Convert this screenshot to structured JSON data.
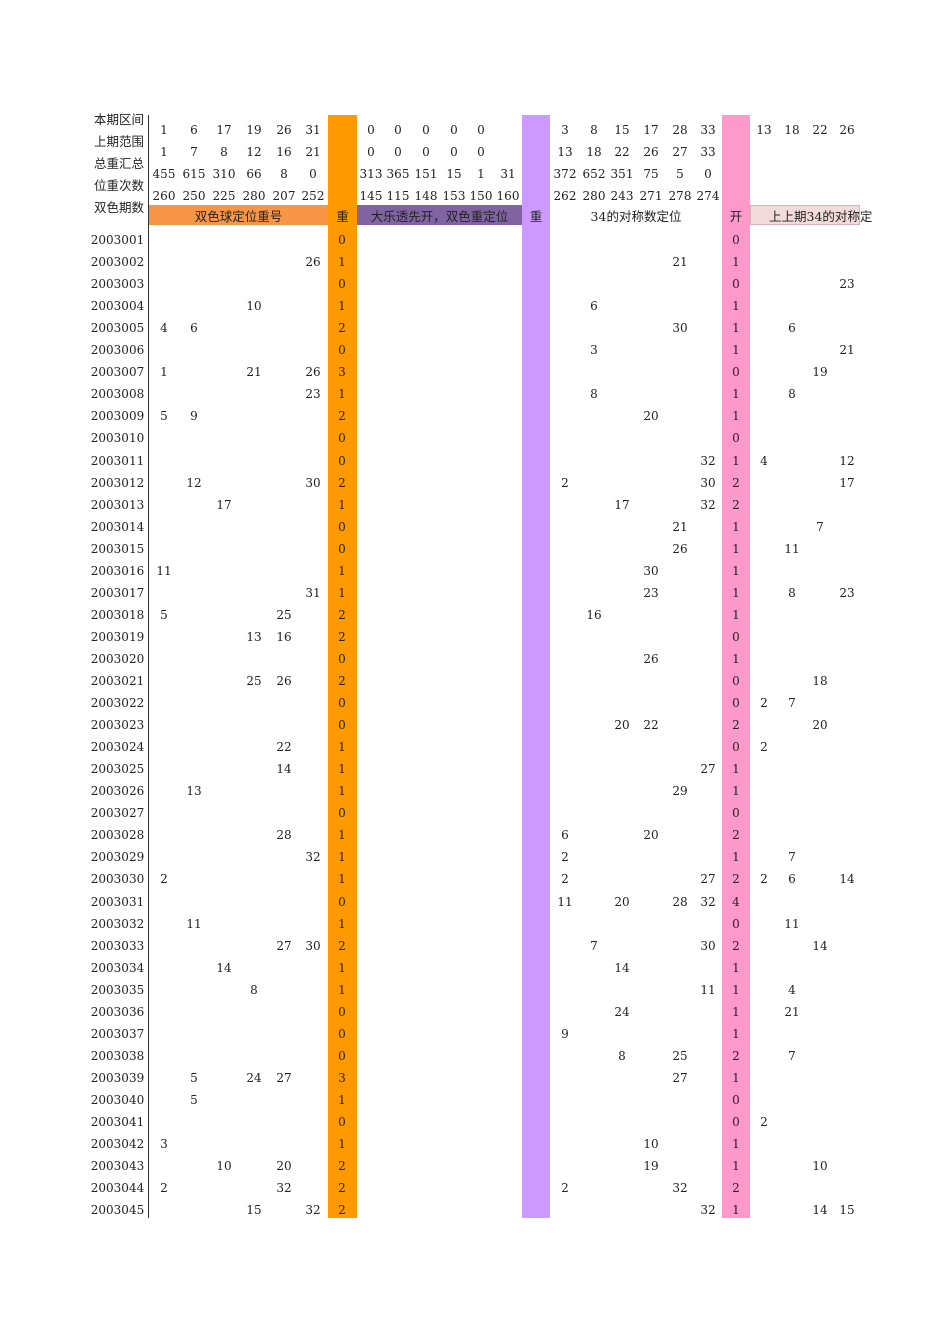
{
  "row_labels": {
    "range_current": "本期区间",
    "range_previous": "上期范围",
    "total_summary": "总重汇总",
    "position_count": "位重次数",
    "ssq_period": "双色期数"
  },
  "headers": {
    "ssq_position": "双色球定位重号",
    "repeat_a": "重",
    "dlt_first": "大乐透先开，双色重定位",
    "repeat_b": "重",
    "symmetric34": "34的对称数定位",
    "open": "开",
    "prev_prev_symmetric": "上上期34的对称定"
  },
  "colors": {
    "orange_band": "#ff9900",
    "purple_band": "#cc99ff",
    "pink_band": "#ff99cc",
    "header_orange": "#f79646",
    "header_dark_purple": "#8064a2",
    "header_pink": "#ff99cc",
    "header_light_pink": "#f2dcdb"
  },
  "top_rows": [
    [
      "1",
      "6",
      "17",
      "19",
      "26",
      "31",
      "",
      "0",
      "0",
      "0",
      "0",
      "0",
      "",
      "",
      "3",
      "8",
      "15",
      "17",
      "28",
      "33",
      "",
      "13",
      "18",
      "22",
      "26"
    ],
    [
      "1",
      "7",
      "8",
      "12",
      "16",
      "21",
      "",
      "0",
      "0",
      "0",
      "0",
      "0",
      "",
      "",
      "13",
      "18",
      "22",
      "26",
      "27",
      "33",
      "",
      "",
      "",
      "",
      ""
    ],
    [
      "455",
      "615",
      "310",
      "66",
      "8",
      "0",
      "",
      "313",
      "365",
      "151",
      "15",
      "1",
      "31",
      "",
      "372",
      "652",
      "351",
      "75",
      "5",
      "0",
      "",
      "",
      "",
      "",
      ""
    ],
    [
      "260",
      "250",
      "225",
      "280",
      "207",
      "252",
      "",
      "145",
      "115",
      "148",
      "153",
      "150",
      "160",
      "",
      "262",
      "280",
      "243",
      "271",
      "278",
      "274",
      "",
      "",
      "",
      "",
      ""
    ]
  ],
  "data_rows": [
    {
      "d": "2003001",
      "c": [
        "",
        "",
        "",
        "",
        "",
        "",
        "0",
        "",
        "",
        "",
        "",
        "",
        "",
        "",
        "",
        "",
        "",
        "",
        "",
        "",
        "0",
        "",
        "",
        "",
        ""
      ]
    },
    {
      "d": "2003002",
      "c": [
        "",
        "",
        "",
        "",
        "",
        "26",
        "1",
        "",
        "",
        "",
        "",
        "",
        "",
        "",
        "",
        "",
        "",
        "",
        "21",
        "",
        "1",
        "",
        "",
        "",
        ""
      ]
    },
    {
      "d": "2003003",
      "c": [
        "",
        "",
        "",
        "",
        "",
        "",
        "0",
        "",
        "",
        "",
        "",
        "",
        "",
        "",
        "",
        "",
        "",
        "",
        "",
        "",
        "0",
        "",
        "",
        "",
        "23"
      ]
    },
    {
      "d": "2003004",
      "c": [
        "",
        "",
        "",
        "10",
        "",
        "",
        "1",
        "",
        "",
        "",
        "",
        "",
        "",
        "",
        "",
        "6",
        "",
        "",
        "",
        "",
        "1",
        "",
        "",
        "",
        ""
      ]
    },
    {
      "d": "2003005",
      "c": [
        "4",
        "6",
        "",
        "",
        "",
        "",
        "2",
        "",
        "",
        "",
        "",
        "",
        "",
        "",
        "",
        "",
        "",
        "",
        "30",
        "",
        "1",
        "",
        "6",
        "",
        ""
      ]
    },
    {
      "d": "2003006",
      "c": [
        "",
        "",
        "",
        "",
        "",
        "",
        "0",
        "",
        "",
        "",
        "",
        "",
        "",
        "",
        "",
        "3",
        "",
        "",
        "",
        "",
        "1",
        "",
        "",
        "",
        "21"
      ]
    },
    {
      "d": "2003007",
      "c": [
        "1",
        "",
        "",
        "21",
        "",
        "26",
        "3",
        "",
        "",
        "",
        "",
        "",
        "",
        "",
        "",
        "",
        "",
        "",
        "",
        "",
        "0",
        "",
        "",
        "19",
        ""
      ]
    },
    {
      "d": "2003008",
      "c": [
        "",
        "",
        "",
        "",
        "",
        "23",
        "1",
        "",
        "",
        "",
        "",
        "",
        "",
        "",
        "",
        "8",
        "",
        "",
        "",
        "",
        "1",
        "",
        "8",
        "",
        ""
      ]
    },
    {
      "d": "2003009",
      "c": [
        "5",
        "9",
        "",
        "",
        "",
        "",
        "2",
        "",
        "",
        "",
        "",
        "",
        "",
        "",
        "",
        "",
        "",
        "20",
        "",
        "",
        "1",
        "",
        "",
        "",
        ""
      ]
    },
    {
      "d": "2003010",
      "c": [
        "",
        "",
        "",
        "",
        "",
        "",
        "0",
        "",
        "",
        "",
        "",
        "",
        "",
        "",
        "",
        "",
        "",
        "",
        "",
        "",
        "0",
        "",
        "",
        "",
        ""
      ]
    },
    {
      "d": "2003011",
      "c": [
        "",
        "",
        "",
        "",
        "",
        "",
        "0",
        "",
        "",
        "",
        "",
        "",
        "",
        "",
        "",
        "",
        "",
        "",
        "",
        "32",
        "1",
        "4",
        "",
        "",
        "12"
      ]
    },
    {
      "d": "2003012",
      "c": [
        "",
        "12",
        "",
        "",
        "",
        "30",
        "2",
        "",
        "",
        "",
        "",
        "",
        "",
        "",
        "2",
        "",
        "",
        "",
        "",
        "30",
        "2",
        "",
        "",
        "",
        "17"
      ]
    },
    {
      "d": "2003013",
      "c": [
        "",
        "",
        "17",
        "",
        "",
        "",
        "1",
        "",
        "",
        "",
        "",
        "",
        "",
        "",
        "",
        "",
        "17",
        "",
        "",
        "32",
        "2",
        "",
        "",
        "",
        ""
      ]
    },
    {
      "d": "2003014",
      "c": [
        "",
        "",
        "",
        "",
        "",
        "",
        "0",
        "",
        "",
        "",
        "",
        "",
        "",
        "",
        "",
        "",
        "",
        "",
        "21",
        "",
        "1",
        "",
        "",
        "7",
        ""
      ]
    },
    {
      "d": "2003015",
      "c": [
        "",
        "",
        "",
        "",
        "",
        "",
        "0",
        "",
        "",
        "",
        "",
        "",
        "",
        "",
        "",
        "",
        "",
        "",
        "26",
        "",
        "1",
        "",
        "11",
        "",
        ""
      ]
    },
    {
      "d": "2003016",
      "c": [
        "11",
        "",
        "",
        "",
        "",
        "",
        "1",
        "",
        "",
        "",
        "",
        "",
        "",
        "",
        "",
        "",
        "",
        "30",
        "",
        "",
        "1",
        "",
        "",
        "",
        ""
      ]
    },
    {
      "d": "2003017",
      "c": [
        "",
        "",
        "",
        "",
        "",
        "31",
        "1",
        "",
        "",
        "",
        "",
        "",
        "",
        "",
        "",
        "",
        "",
        "23",
        "",
        "",
        "1",
        "",
        "8",
        "",
        "23"
      ]
    },
    {
      "d": "2003018",
      "c": [
        "5",
        "",
        "",
        "",
        "25",
        "",
        "2",
        "",
        "",
        "",
        "",
        "",
        "",
        "",
        "",
        "16",
        "",
        "",
        "",
        "",
        "1",
        "",
        "",
        "",
        ""
      ]
    },
    {
      "d": "2003019",
      "c": [
        "",
        "",
        "",
        "13",
        "16",
        "",
        "2",
        "",
        "",
        "",
        "",
        "",
        "",
        "",
        "",
        "",
        "",
        "",
        "",
        "",
        "0",
        "",
        "",
        "",
        ""
      ]
    },
    {
      "d": "2003020",
      "c": [
        "",
        "",
        "",
        "",
        "",
        "",
        "0",
        "",
        "",
        "",
        "",
        "",
        "",
        "",
        "",
        "",
        "",
        "26",
        "",
        "",
        "1",
        "",
        "",
        "",
        ""
      ]
    },
    {
      "d": "2003021",
      "c": [
        "",
        "",
        "",
        "25",
        "26",
        "",
        "2",
        "",
        "",
        "",
        "",
        "",
        "",
        "",
        "",
        "",
        "",
        "",
        "",
        "",
        "0",
        "",
        "",
        "18",
        ""
      ]
    },
    {
      "d": "2003022",
      "c": [
        "",
        "",
        "",
        "",
        "",
        "",
        "0",
        "",
        "",
        "",
        "",
        "",
        "",
        "",
        "",
        "",
        "",
        "",
        "",
        "",
        "0",
        "2",
        "7",
        "",
        ""
      ]
    },
    {
      "d": "2003023",
      "c": [
        "",
        "",
        "",
        "",
        "",
        "",
        "0",
        "",
        "",
        "",
        "",
        "",
        "",
        "",
        "",
        "",
        "20",
        "22",
        "",
        "",
        "2",
        "",
        "",
        "20",
        ""
      ]
    },
    {
      "d": "2003024",
      "c": [
        "",
        "",
        "",
        "",
        "22",
        "",
        "1",
        "",
        "",
        "",
        "",
        "",
        "",
        "",
        "",
        "",
        "",
        "",
        "",
        "",
        "0",
        "2",
        "",
        "",
        ""
      ]
    },
    {
      "d": "2003025",
      "c": [
        "",
        "",
        "",
        "",
        "14",
        "",
        "1",
        "",
        "",
        "",
        "",
        "",
        "",
        "",
        "",
        "",
        "",
        "",
        "",
        "27",
        "1",
        "",
        "",
        "",
        ""
      ]
    },
    {
      "d": "2003026",
      "c": [
        "",
        "13",
        "",
        "",
        "",
        "",
        "1",
        "",
        "",
        "",
        "",
        "",
        "",
        "",
        "",
        "",
        "",
        "",
        "29",
        "",
        "1",
        "",
        "",
        "",
        ""
      ]
    },
    {
      "d": "2003027",
      "c": [
        "",
        "",
        "",
        "",
        "",
        "",
        "0",
        "",
        "",
        "",
        "",
        "",
        "",
        "",
        "",
        "",
        "",
        "",
        "",
        "",
        "0",
        "",
        "",
        "",
        ""
      ]
    },
    {
      "d": "2003028",
      "c": [
        "",
        "",
        "",
        "",
        "28",
        "",
        "1",
        "",
        "",
        "",
        "",
        "",
        "",
        "",
        "6",
        "",
        "",
        "20",
        "",
        "",
        "2",
        "",
        "",
        "",
        ""
      ]
    },
    {
      "d": "2003029",
      "c": [
        "",
        "",
        "",
        "",
        "",
        "32",
        "1",
        "",
        "",
        "",
        "",
        "",
        "",
        "",
        "2",
        "",
        "",
        "",
        "",
        "",
        "1",
        "",
        "7",
        "",
        ""
      ]
    },
    {
      "d": "2003030",
      "c": [
        "2",
        "",
        "",
        "",
        "",
        "",
        "1",
        "",
        "",
        "",
        "",
        "",
        "",
        "",
        "2",
        "",
        "",
        "",
        "",
        "27",
        "2",
        "2",
        "6",
        "",
        "14"
      ]
    },
    {
      "d": "2003031",
      "c": [
        "",
        "",
        "",
        "",
        "",
        "",
        "0",
        "",
        "",
        "",
        "",
        "",
        "",
        "",
        "11",
        "",
        "20",
        "",
        "28",
        "32",
        "4",
        "",
        "",
        "",
        ""
      ]
    },
    {
      "d": "2003032",
      "c": [
        "",
        "11",
        "",
        "",
        "",
        "",
        "1",
        "",
        "",
        "",
        "",
        "",
        "",
        "",
        "",
        "",
        "",
        "",
        "",
        "",
        "0",
        "",
        "11",
        "",
        ""
      ]
    },
    {
      "d": "2003033",
      "c": [
        "",
        "",
        "",
        "",
        "27",
        "30",
        "2",
        "",
        "",
        "",
        "",
        "",
        "",
        "",
        "",
        "7",
        "",
        "",
        "",
        "30",
        "2",
        "",
        "",
        "14",
        ""
      ]
    },
    {
      "d": "2003034",
      "c": [
        "",
        "",
        "14",
        "",
        "",
        "",
        "1",
        "",
        "",
        "",
        "",
        "",
        "",
        "",
        "",
        "",
        "14",
        "",
        "",
        "",
        "1",
        "",
        "",
        "",
        ""
      ]
    },
    {
      "d": "2003035",
      "c": [
        "",
        "",
        "",
        "8",
        "",
        "",
        "1",
        "",
        "",
        "",
        "",
        "",
        "",
        "",
        "",
        "",
        "",
        "",
        "",
        "11",
        "1",
        "",
        "4",
        "",
        ""
      ]
    },
    {
      "d": "2003036",
      "c": [
        "",
        "",
        "",
        "",
        "",
        "",
        "0",
        "",
        "",
        "",
        "",
        "",
        "",
        "",
        "",
        "",
        "24",
        "",
        "",
        "",
        "1",
        "",
        "21",
        "",
        ""
      ]
    },
    {
      "d": "2003037",
      "c": [
        "",
        "",
        "",
        "",
        "",
        "",
        "0",
        "",
        "",
        "",
        "",
        "",
        "",
        "",
        "9",
        "",
        "",
        "",
        "",
        "",
        "1",
        "",
        "",
        "",
        ""
      ]
    },
    {
      "d": "2003038",
      "c": [
        "",
        "",
        "",
        "",
        "",
        "",
        "0",
        "",
        "",
        "",
        "",
        "",
        "",
        "",
        "",
        "",
        "8",
        "",
        "25",
        "",
        "2",
        "",
        "7",
        "",
        ""
      ]
    },
    {
      "d": "2003039",
      "c": [
        "",
        "5",
        "",
        "24",
        "27",
        "",
        "3",
        "",
        "",
        "",
        "",
        "",
        "",
        "",
        "",
        "",
        "",
        "",
        "27",
        "",
        "1",
        "",
        "",
        "",
        ""
      ]
    },
    {
      "d": "2003040",
      "c": [
        "",
        "5",
        "",
        "",
        "",
        "",
        "1",
        "",
        "",
        "",
        "",
        "",
        "",
        "",
        "",
        "",
        "",
        "",
        "",
        "",
        "0",
        "",
        "",
        "",
        ""
      ]
    },
    {
      "d": "2003041",
      "c": [
        "",
        "",
        "",
        "",
        "",
        "",
        "0",
        "",
        "",
        "",
        "",
        "",
        "",
        "",
        "",
        "",
        "",
        "",
        "",
        "",
        "0",
        "2",
        "",
        "",
        ""
      ]
    },
    {
      "d": "2003042",
      "c": [
        "3",
        "",
        "",
        "",
        "",
        "",
        "1",
        "",
        "",
        "",
        "",
        "",
        "",
        "",
        "",
        "",
        "",
        "10",
        "",
        "",
        "1",
        "",
        "",
        "",
        ""
      ]
    },
    {
      "d": "2003043",
      "c": [
        "",
        "",
        "10",
        "",
        "20",
        "",
        "2",
        "",
        "",
        "",
        "",
        "",
        "",
        "",
        "",
        "",
        "",
        "19",
        "",
        "",
        "1",
        "",
        "",
        "10",
        ""
      ]
    },
    {
      "d": "2003044",
      "c": [
        "2",
        "",
        "",
        "",
        "32",
        "",
        "2",
        "",
        "",
        "",
        "",
        "",
        "",
        "",
        "2",
        "",
        "",
        "",
        "32",
        "",
        "2",
        "",
        "",
        "",
        ""
      ]
    },
    {
      "d": "2003045",
      "c": [
        "",
        "",
        "",
        "15",
        "",
        "32",
        "2",
        "",
        "",
        "",
        "",
        "",
        "",
        "",
        "",
        "",
        "",
        "",
        "",
        "32",
        "1",
        "",
        "",
        "14",
        "15"
      ]
    }
  ]
}
